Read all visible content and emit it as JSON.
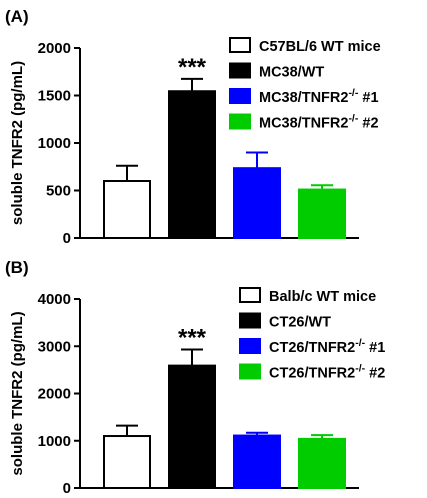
{
  "chart_data": [
    {
      "type": "bar",
      "panel_label": "(A)",
      "ylabel": "soluble TNFR2 (pg/mL)",
      "ylim": [
        0,
        2000
      ],
      "yticks": [
        0,
        500,
        1000,
        1500,
        2000
      ],
      "legend_position": "right",
      "series": [
        {
          "name": "C57BL/6 WT mice",
          "value": 600,
          "error": 160,
          "color": "#ffffff",
          "legend": {
            "main": "C57BL/6 WT mice",
            "sup": "",
            "suffix": ""
          }
        },
        {
          "name": "MC38/WT",
          "value": 1545,
          "error": 130,
          "color": "#000000",
          "significance": "***",
          "legend": {
            "main": "MC38/WT",
            "sup": "",
            "suffix": ""
          }
        },
        {
          "name": "MC38/TNFR2-/- #1",
          "value": 735,
          "error": 165,
          "color": "#0000ff",
          "legend": {
            "main": "MC38/TNFR2",
            "sup": "-/-",
            "suffix": " #1"
          }
        },
        {
          "name": "MC38/TNFR2-/- #2",
          "value": 510,
          "error": 45,
          "color": "#00cc00",
          "legend": {
            "main": "MC38/TNFR2",
            "sup": "-/-",
            "suffix": " #2"
          }
        }
      ]
    },
    {
      "type": "bar",
      "panel_label": "(B)",
      "ylabel": "soluble TNFR2 (pg/mL)",
      "ylim": [
        0,
        4000
      ],
      "yticks": [
        0,
        1000,
        2000,
        3000,
        4000
      ],
      "legend_position": "right",
      "series": [
        {
          "name": "Balb/c WT mice",
          "value": 1100,
          "error": 220,
          "color": "#ffffff",
          "legend": {
            "main": "Balb/c WT mice",
            "sup": "",
            "suffix": ""
          }
        },
        {
          "name": "CT26/WT",
          "value": 2590,
          "error": 340,
          "color": "#000000",
          "significance": "***",
          "legend": {
            "main": "CT26/WT",
            "sup": "",
            "suffix": ""
          }
        },
        {
          "name": "CT26/TNFR2-/- #1",
          "value": 1110,
          "error": 60,
          "color": "#0000ff",
          "legend": {
            "main": "CT26/TNFR2",
            "sup": "-/-",
            "suffix": "  #1"
          }
        },
        {
          "name": "CT26/TNFR2-/- #2",
          "value": 1040,
          "error": 80,
          "color": "#00cc00",
          "legend": {
            "main": "CT26/TNFR2",
            "sup": "-/-",
            "suffix": "  #2"
          }
        }
      ]
    }
  ]
}
